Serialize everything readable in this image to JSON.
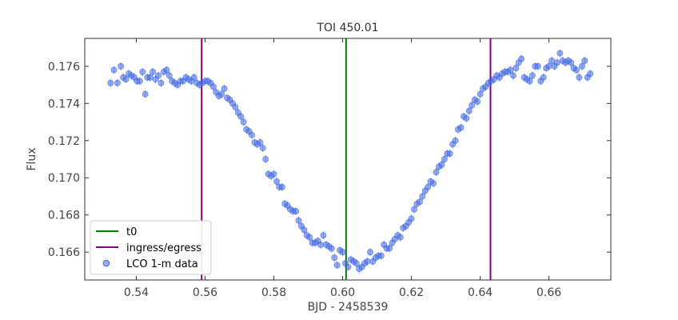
{
  "chart_data": {
    "type": "scatter",
    "title": "TOI 450.01",
    "xlabel": "BJD - 2458539",
    "ylabel": "Flux",
    "xlim": [
      0.525,
      0.678
    ],
    "ylim": [
      0.1645,
      0.1775
    ],
    "x_ticks": [
      0.54,
      0.56,
      0.58,
      0.6,
      0.62,
      0.64,
      0.66
    ],
    "x_tick_labels": [
      "0.54",
      "0.56",
      "0.58",
      "0.60",
      "0.62",
      "0.64",
      "0.66"
    ],
    "y_ticks": [
      0.166,
      0.168,
      0.17,
      0.172,
      0.174,
      0.176
    ],
    "y_tick_labels": [
      "0.166",
      "0.168",
      "0.170",
      "0.172",
      "0.174",
      "0.176"
    ],
    "grid": false,
    "legend_position": "lower-left",
    "colors": {
      "t0": "#008000",
      "ingress_egress": "#800080",
      "data": "#4169e1"
    },
    "vlines": [
      {
        "name": "t0",
        "x": 0.601,
        "color": "#008000"
      },
      {
        "name": "ingress/egress",
        "x": 0.559,
        "color": "#800080"
      },
      {
        "name": "ingress/egress",
        "x": 0.643,
        "color": "#800080"
      }
    ],
    "legend": [
      {
        "label": "t0",
        "kind": "line",
        "color": "#008000"
      },
      {
        "label": "ingress/egress",
        "kind": "line",
        "color": "#800080"
      },
      {
        "label": "LCO 1-m data",
        "kind": "marker",
        "color": "#4169e1"
      }
    ],
    "series": [
      {
        "name": "LCO 1-m data",
        "marker": "circle",
        "color": "#4169e1",
        "points": [
          [
            0.5325,
            0.1751
          ],
          [
            0.5335,
            0.1758
          ],
          [
            0.5345,
            0.1751
          ],
          [
            0.5355,
            0.176
          ],
          [
            0.5362,
            0.1754
          ],
          [
            0.537,
            0.1753
          ],
          [
            0.5378,
            0.1756
          ],
          [
            0.5386,
            0.1755
          ],
          [
            0.5394,
            0.1754
          ],
          [
            0.5402,
            0.1752
          ],
          [
            0.541,
            0.1752
          ],
          [
            0.5418,
            0.1757
          ],
          [
            0.5426,
            0.1745
          ],
          [
            0.5432,
            0.1754
          ],
          [
            0.544,
            0.1754
          ],
          [
            0.5448,
            0.1757
          ],
          [
            0.5456,
            0.1753
          ],
          [
            0.5464,
            0.1755
          ],
          [
            0.5472,
            0.1751
          ],
          [
            0.548,
            0.1757
          ],
          [
            0.5488,
            0.1758
          ],
          [
            0.5496,
            0.1755
          ],
          [
            0.5504,
            0.1752
          ],
          [
            0.5512,
            0.1751
          ],
          [
            0.552,
            0.175
          ],
          [
            0.5528,
            0.1752
          ],
          [
            0.5536,
            0.1752
          ],
          [
            0.5544,
            0.1754
          ],
          [
            0.5552,
            0.1753
          ],
          [
            0.556,
            0.1752
          ],
          [
            0.5568,
            0.1754
          ],
          [
            0.5576,
            0.1751
          ],
          [
            0.5584,
            0.175
          ],
          [
            0.5592,
            0.1751
          ],
          [
            0.56,
            0.1752
          ],
          [
            0.5608,
            0.1752
          ],
          [
            0.5616,
            0.1751
          ],
          [
            0.5624,
            0.1749
          ],
          [
            0.5632,
            0.1746
          ],
          [
            0.564,
            0.1744
          ],
          [
            0.5648,
            0.1745
          ],
          [
            0.5656,
            0.1748
          ],
          [
            0.5664,
            0.1743
          ],
          [
            0.5672,
            0.1742
          ],
          [
            0.568,
            0.174
          ],
          [
            0.5688,
            0.1738
          ],
          [
            0.5696,
            0.1735
          ],
          [
            0.5704,
            0.1733
          ],
          [
            0.5712,
            0.173
          ],
          [
            0.572,
            0.1726
          ],
          [
            0.5728,
            0.1725
          ],
          [
            0.5736,
            0.1723
          ],
          [
            0.5744,
            0.1719
          ],
          [
            0.5752,
            0.1718
          ],
          [
            0.576,
            0.1719
          ],
          [
            0.5768,
            0.1716
          ],
          [
            0.5776,
            0.171
          ],
          [
            0.5784,
            0.1702
          ],
          [
            0.5792,
            0.1701
          ],
          [
            0.58,
            0.1702
          ],
          [
            0.5808,
            0.1698
          ],
          [
            0.5816,
            0.1695
          ],
          [
            0.5824,
            0.1695
          ],
          [
            0.5832,
            0.1686
          ],
          [
            0.584,
            0.1685
          ],
          [
            0.5848,
            0.1683
          ],
          [
            0.5856,
            0.1682
          ],
          [
            0.5864,
            0.1682
          ],
          [
            0.5872,
            0.1677
          ],
          [
            0.588,
            0.1674
          ],
          [
            0.5888,
            0.1672
          ],
          [
            0.5896,
            0.1669
          ],
          [
            0.5904,
            0.1668
          ],
          [
            0.5912,
            0.1665
          ],
          [
            0.592,
            0.1665
          ],
          [
            0.5928,
            0.1666
          ],
          [
            0.5936,
            0.1664
          ],
          [
            0.5944,
            0.1669
          ],
          [
            0.5952,
            0.1664
          ],
          [
            0.596,
            0.1663
          ],
          [
            0.5968,
            0.1662
          ],
          [
            0.5976,
            0.1657
          ],
          [
            0.5984,
            0.1653
          ],
          [
            0.5992,
            0.1661
          ],
          [
            0.6,
            0.166
          ],
          [
            0.6008,
            0.1654
          ],
          [
            0.6016,
            0.1652
          ],
          [
            0.6024,
            0.1656
          ],
          [
            0.6032,
            0.1655
          ],
          [
            0.604,
            0.1654
          ],
          [
            0.6048,
            0.1651
          ],
          [
            0.6056,
            0.1652
          ],
          [
            0.6064,
            0.1654
          ],
          [
            0.6072,
            0.1655
          ],
          [
            0.608,
            0.166
          ],
          [
            0.6088,
            0.1655
          ],
          [
            0.6096,
            0.1657
          ],
          [
            0.6104,
            0.1658
          ],
          [
            0.6112,
            0.1658
          ],
          [
            0.612,
            0.1664
          ],
          [
            0.6128,
            0.1662
          ],
          [
            0.6136,
            0.1662
          ],
          [
            0.6144,
            0.1665
          ],
          [
            0.6152,
            0.1667
          ],
          [
            0.616,
            0.1669
          ],
          [
            0.6168,
            0.1668
          ],
          [
            0.6176,
            0.1673
          ],
          [
            0.6184,
            0.1674
          ],
          [
            0.6192,
            0.1676
          ],
          [
            0.62,
            0.1678
          ],
          [
            0.6208,
            0.1683
          ],
          [
            0.6216,
            0.1686
          ],
          [
            0.6224,
            0.1687
          ],
          [
            0.6232,
            0.169
          ],
          [
            0.624,
            0.1693
          ],
          [
            0.6248,
            0.1695
          ],
          [
            0.6256,
            0.1698
          ],
          [
            0.6264,
            0.1697
          ],
          [
            0.6272,
            0.1703
          ],
          [
            0.628,
            0.1706
          ],
          [
            0.6288,
            0.1707
          ],
          [
            0.6296,
            0.171
          ],
          [
            0.6304,
            0.1713
          ],
          [
            0.6312,
            0.1713
          ],
          [
            0.632,
            0.1718
          ],
          [
            0.6328,
            0.172
          ],
          [
            0.6336,
            0.1726
          ],
          [
            0.6344,
            0.1727
          ],
          [
            0.6352,
            0.1733
          ],
          [
            0.636,
            0.1732
          ],
          [
            0.6368,
            0.1736
          ],
          [
            0.6376,
            0.1739
          ],
          [
            0.6384,
            0.1742
          ],
          [
            0.6392,
            0.1741
          ],
          [
            0.64,
            0.1745
          ],
          [
            0.6408,
            0.1748
          ],
          [
            0.6416,
            0.1749
          ],
          [
            0.6424,
            0.1751
          ],
          [
            0.6432,
            0.1752
          ],
          [
            0.644,
            0.1753
          ],
          [
            0.6448,
            0.1755
          ],
          [
            0.6456,
            0.1754
          ],
          [
            0.6464,
            0.1756
          ],
          [
            0.6472,
            0.1757
          ],
          [
            0.648,
            0.1757
          ],
          [
            0.6488,
            0.1758
          ],
          [
            0.6496,
            0.1755
          ],
          [
            0.6504,
            0.1759
          ],
          [
            0.6512,
            0.1762
          ],
          [
            0.652,
            0.1764
          ],
          [
            0.6528,
            0.1754
          ],
          [
            0.6536,
            0.1753
          ],
          [
            0.6544,
            0.1752
          ],
          [
            0.6552,
            0.1755
          ],
          [
            0.656,
            0.176
          ],
          [
            0.6568,
            0.176
          ],
          [
            0.6576,
            0.1752
          ],
          [
            0.6584,
            0.1754
          ],
          [
            0.6592,
            0.1759
          ],
          [
            0.66,
            0.176
          ],
          [
            0.6608,
            0.1763
          ],
          [
            0.6616,
            0.176
          ],
          [
            0.6624,
            0.1762
          ],
          [
            0.6632,
            0.1767
          ],
          [
            0.664,
            0.1763
          ],
          [
            0.6648,
            0.1762
          ],
          [
            0.6656,
            0.1763
          ],
          [
            0.6664,
            0.1762
          ],
          [
            0.6672,
            0.1759
          ],
          [
            0.668,
            0.1758
          ],
          [
            0.6688,
            0.1754
          ],
          [
            0.6696,
            0.176
          ],
          [
            0.6704,
            0.1763
          ],
          [
            0.6712,
            0.1754
          ],
          [
            0.672,
            0.1756
          ]
        ]
      }
    ]
  }
}
